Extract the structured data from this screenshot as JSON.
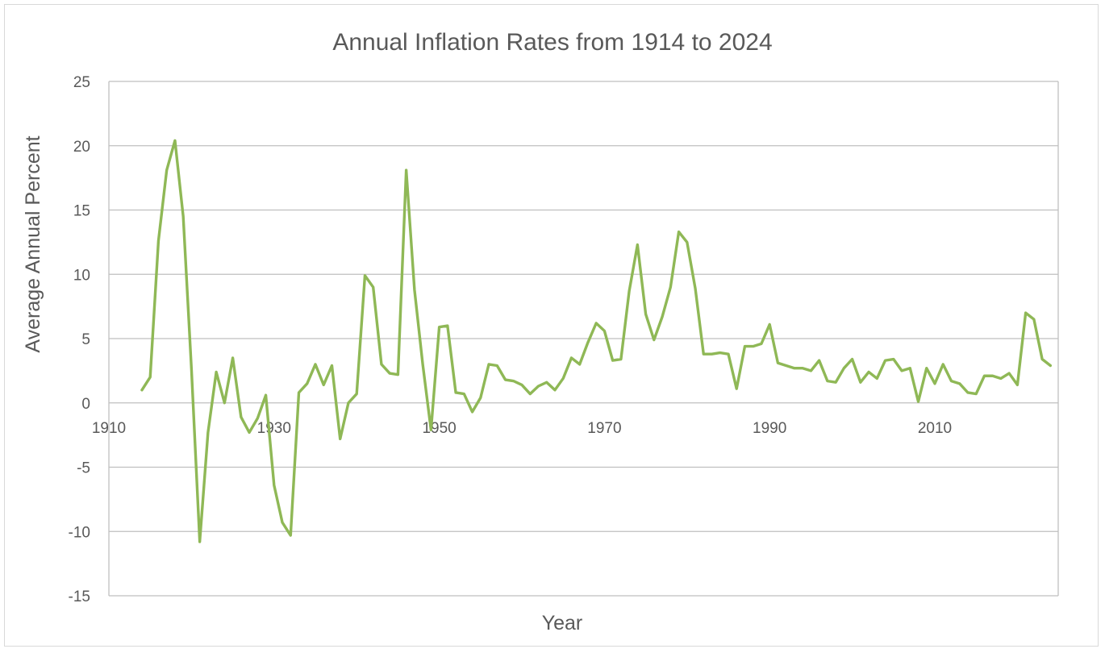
{
  "chart_data": {
    "type": "line",
    "title": "Annual Inflation Rates from 1914 to 2024",
    "xlabel": "Year",
    "ylabel": "Average Annual Percent",
    "xlim": [
      1910,
      2025
    ],
    "ylim": [
      -15,
      25
    ],
    "x_ticks": [
      1910,
      1930,
      1950,
      1970,
      1990,
      2010
    ],
    "y_ticks": [
      -15,
      -10,
      -5,
      0,
      5,
      10,
      15,
      20,
      25
    ],
    "grid": "horizontal",
    "legend": "none",
    "series_color": "#8FB856",
    "x": [
      1914,
      1915,
      1916,
      1917,
      1918,
      1919,
      1920,
      1921,
      1922,
      1923,
      1924,
      1925,
      1926,
      1927,
      1928,
      1929,
      1930,
      1931,
      1932,
      1933,
      1934,
      1935,
      1936,
      1937,
      1938,
      1939,
      1940,
      1941,
      1942,
      1943,
      1944,
      1945,
      1946,
      1947,
      1948,
      1949,
      1950,
      1951,
      1952,
      1953,
      1954,
      1955,
      1956,
      1957,
      1958,
      1959,
      1960,
      1961,
      1962,
      1963,
      1964,
      1965,
      1966,
      1967,
      1968,
      1969,
      1970,
      1971,
      1972,
      1973,
      1974,
      1975,
      1976,
      1977,
      1978,
      1979,
      1980,
      1981,
      1982,
      1983,
      1984,
      1985,
      1986,
      1987,
      1988,
      1989,
      1990,
      1991,
      1992,
      1993,
      1994,
      1995,
      1996,
      1997,
      1998,
      1999,
      2000,
      2001,
      2002,
      2003,
      2004,
      2005,
      2006,
      2007,
      2008,
      2009,
      2010,
      2011,
      2012,
      2013,
      2014,
      2015,
      2016,
      2017,
      2018,
      2019,
      2020,
      2021,
      2022,
      2023,
      2024
    ],
    "series": [
      {
        "values": [
          1.0,
          2.0,
          12.6,
          18.1,
          20.4,
          14.5,
          2.6,
          -10.8,
          -2.3,
          2.4,
          0.0,
          3.5,
          -1.1,
          -2.3,
          -1.2,
          0.6,
          -6.4,
          -9.3,
          -10.3,
          0.8,
          1.5,
          3.0,
          1.4,
          2.9,
          -2.8,
          0.0,
          0.7,
          9.9,
          9.0,
          3.0,
          2.3,
          2.2,
          18.1,
          8.8,
          3.0,
          -2.1,
          5.9,
          6.0,
          0.8,
          0.7,
          -0.7,
          0.4,
          3.0,
          2.9,
          1.8,
          1.7,
          1.4,
          0.7,
          1.3,
          1.6,
          1.0,
          1.9,
          3.5,
          3.0,
          4.7,
          6.2,
          5.6,
          3.3,
          3.4,
          8.7,
          12.3,
          6.9,
          4.9,
          6.7,
          9.0,
          13.3,
          12.5,
          8.9,
          3.8,
          3.8,
          3.9,
          3.8,
          1.1,
          4.4,
          4.4,
          4.6,
          6.1,
          3.1,
          2.9,
          2.7,
          2.7,
          2.5,
          3.3,
          1.7,
          1.6,
          2.7,
          3.4,
          1.6,
          2.4,
          1.9,
          3.3,
          3.4,
          2.5,
          2.7,
          0.1,
          2.7,
          1.5,
          3.0,
          1.7,
          1.5,
          0.8,
          0.7,
          2.1,
          2.1,
          1.9,
          2.3,
          1.4,
          7.0,
          6.5,
          3.4,
          2.9
        ]
      }
    ]
  }
}
